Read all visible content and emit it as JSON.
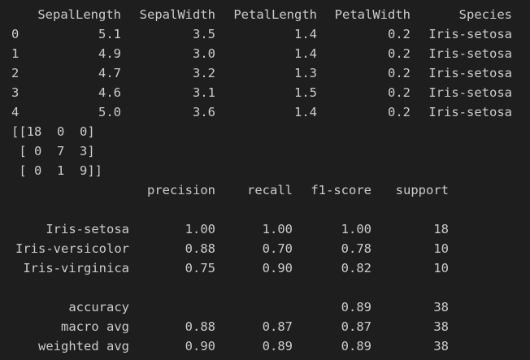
{
  "dataframe": {
    "columns": [
      "SepalLength",
      "SepalWidth",
      "PetalLength",
      "PetalWidth",
      "Species"
    ],
    "rows": [
      {
        "index": "0",
        "cells": [
          "5.1",
          "3.5",
          "1.4",
          "0.2",
          "Iris-setosa"
        ]
      },
      {
        "index": "1",
        "cells": [
          "4.9",
          "3.0",
          "1.4",
          "0.2",
          "Iris-setosa"
        ]
      },
      {
        "index": "2",
        "cells": [
          "4.7",
          "3.2",
          "1.3",
          "0.2",
          "Iris-setosa"
        ]
      },
      {
        "index": "3",
        "cells": [
          "4.6",
          "3.1",
          "1.5",
          "0.2",
          "Iris-setosa"
        ]
      },
      {
        "index": "4",
        "cells": [
          "5.0",
          "3.6",
          "1.4",
          "0.2",
          "Iris-setosa"
        ]
      }
    ]
  },
  "confusion_matrix": {
    "lines": [
      "[[18  0  0]",
      " [ 0  7  3]",
      " [ 0  1  9]]"
    ]
  },
  "report": {
    "columns": [
      "precision",
      "recall",
      "f1-score",
      "support"
    ],
    "rows": [
      {
        "label": "Iris-setosa",
        "cells": [
          "1.00",
          "1.00",
          "1.00",
          "18"
        ]
      },
      {
        "label": "Iris-versicolor",
        "cells": [
          "0.88",
          "0.70",
          "0.78",
          "10"
        ]
      },
      {
        "label": "Iris-virginica",
        "cells": [
          "0.75",
          "0.90",
          "0.82",
          "10"
        ]
      },
      {
        "label": "accuracy",
        "cells": [
          null,
          null,
          "0.89",
          "38"
        ]
      },
      {
        "label": "macro avg",
        "cells": [
          "0.88",
          "0.87",
          "0.87",
          "38"
        ]
      },
      {
        "label": "weighted avg",
        "cells": [
          "0.90",
          "0.89",
          "0.89",
          "38"
        ]
      }
    ]
  }
}
